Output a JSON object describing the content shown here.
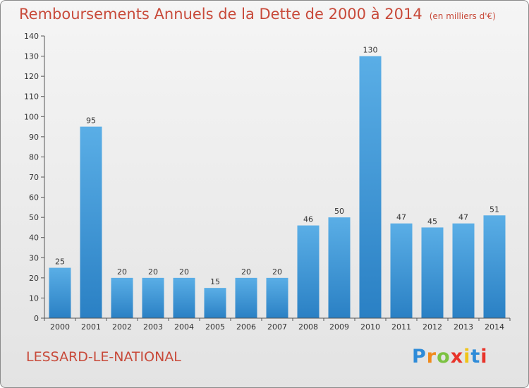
{
  "chart_data": {
    "type": "bar",
    "title": "Remboursements Annuels de la Dette de 2000 à 2014",
    "unit_label": "(en milliers d'€)",
    "xlabel": "",
    "ylabel": "",
    "categories": [
      "2000",
      "2001",
      "2002",
      "2003",
      "2004",
      "2005",
      "2006",
      "2007",
      "2008",
      "2009",
      "2010",
      "2011",
      "2012",
      "2013",
      "2014"
    ],
    "values": [
      25,
      95,
      20,
      20,
      20,
      15,
      20,
      20,
      46,
      50,
      130,
      47,
      45,
      47,
      51
    ],
    "ylim": [
      0,
      140
    ],
    "yticks": [
      0,
      10,
      20,
      30,
      40,
      50,
      60,
      70,
      80,
      90,
      100,
      110,
      120,
      130,
      140
    ],
    "grid": false,
    "bar_color_light": "#5aaee6",
    "bar_color_dark": "#2a80c4"
  },
  "commune": "LESSARD-LE-NATIONAL",
  "logo": {
    "letters": [
      "P",
      "r",
      "o",
      "x",
      "i",
      "t",
      "i"
    ],
    "colors": [
      "#2e8bd8",
      "#f08a1c",
      "#7cc242",
      "#e8342a",
      "#f0c419",
      "#2e8bd8",
      "#e8342a"
    ]
  }
}
